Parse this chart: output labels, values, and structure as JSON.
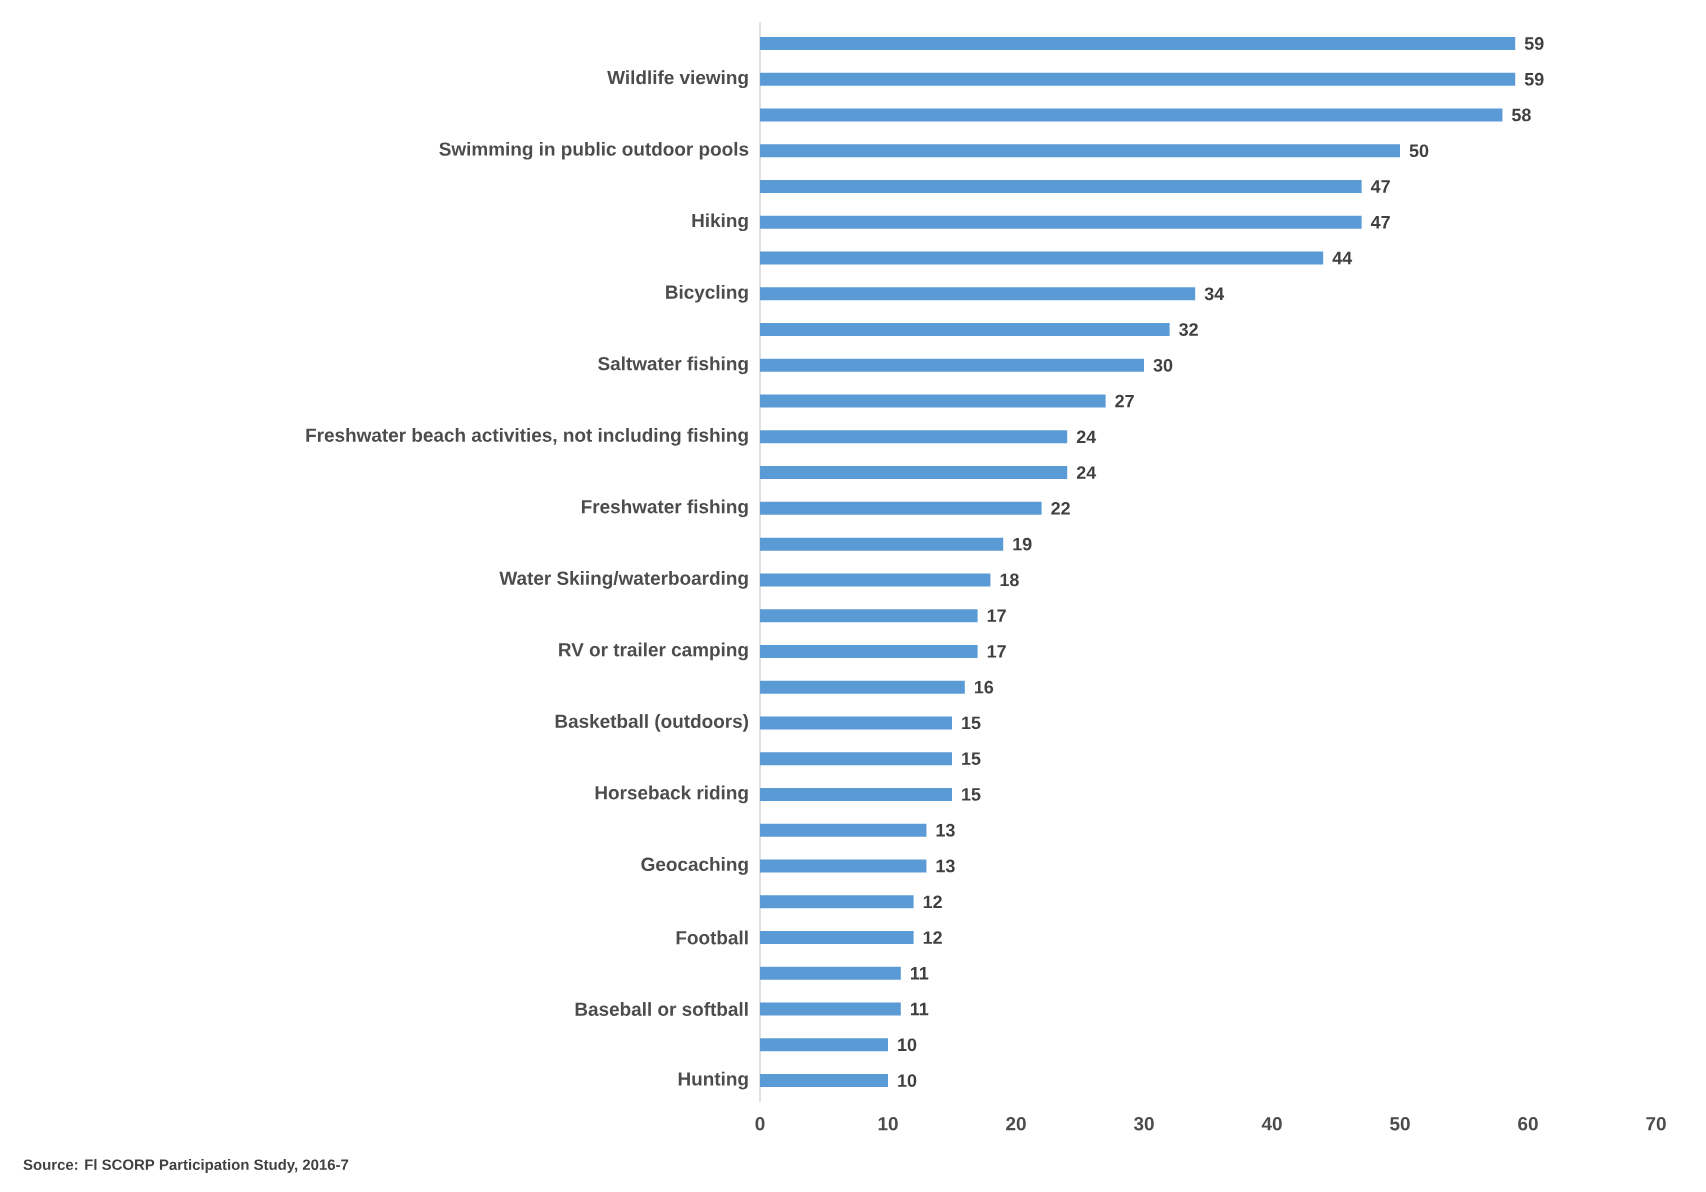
{
  "chart_data": {
    "type": "bar",
    "orientation": "horizontal",
    "categories": [
      null,
      "Wildlife viewing",
      null,
      "Swimming in public outdoor pools",
      null,
      "Hiking",
      null,
      "Bicycling",
      null,
      "Saltwater fishing",
      null,
      "Freshwater beach activities, not including fishing",
      null,
      "Freshwater fishing",
      null,
      "Water Skiing/waterboarding",
      null,
      "RV or trailer camping",
      null,
      "Basketball (outdoors)",
      null,
      "Horseback riding",
      null,
      "Geocaching",
      null,
      "Football",
      null,
      "Baseball or softball",
      null,
      "Hunting"
    ],
    "values": [
      59,
      59,
      58,
      50,
      47,
      47,
      44,
      34,
      32,
      30,
      27,
      24,
      24,
      22,
      19,
      18,
      17,
      17,
      16,
      15,
      15,
      15,
      13,
      13,
      12,
      12,
      11,
      11,
      10,
      10
    ],
    "color": "#5b9bd5",
    "xlim": [
      0,
      70
    ],
    "xticks": [
      0,
      10,
      20,
      30,
      40,
      50,
      60,
      70
    ],
    "data_labels": true,
    "grid": false,
    "annotations": [
      "Source:  Fl SCORP Participation Study, 2016-7"
    ]
  }
}
